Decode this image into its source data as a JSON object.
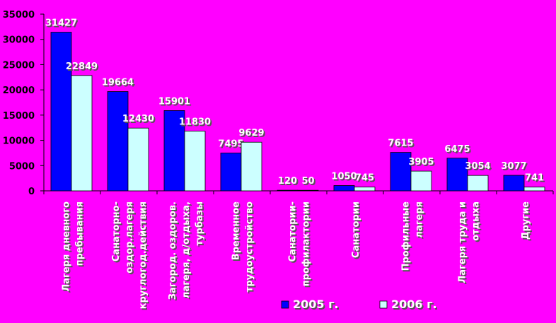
{
  "chart_data": {
    "type": "bar",
    "categories": [
      [
        "Лагеря дневного",
        "пребывания"
      ],
      [
        "Санаторно-",
        "оздор.лагеря",
        "круглогод.действия"
      ],
      [
        "Загород. оздоров.",
        "лагеря,  д/отдыха,",
        "турбазы"
      ],
      [
        "Временное",
        "трудоустройство"
      ],
      [
        "Санатории-",
        "профилактории"
      ],
      [
        "Санатории"
      ],
      [
        "Профильные",
        "лагеря"
      ],
      [
        "Лагеря труда и",
        "отдыха"
      ],
      [
        "Другие"
      ]
    ],
    "series": [
      {
        "name": "2005 г.",
        "color": "#0000ff",
        "values": [
          31427,
          19664,
          15901,
          7495,
          120,
          1050,
          7615,
          6475,
          3077
        ],
        "labels": [
          "31427",
          "19664",
          "15901",
          "7495",
          "120",
          "1050",
          "7615",
          "6475",
          "3077"
        ]
      },
      {
        "name": "2006 г.",
        "color": "#ccffff",
        "values": [
          22849,
          12430,
          11830,
          9629,
          50,
          745,
          3905,
          3054,
          741
        ],
        "labels": [
          "22849",
          "12430",
          "11830",
          "9629",
          "50",
          "745",
          "3905",
          "3054",
          "741"
        ]
      }
    ],
    "yticks": [
      "35000",
      "30000",
      "25000",
      "20000",
      "15000",
      "10000",
      "5000",
      "0"
    ],
    "ylim": [
      0,
      35000
    ],
    "grid": false,
    "legend_position": "bottom-right"
  }
}
